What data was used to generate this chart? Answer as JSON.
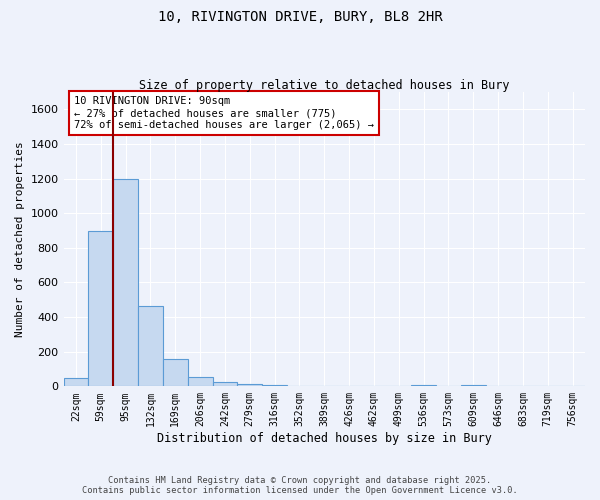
{
  "title1": "10, RIVINGTON DRIVE, BURY, BL8 2HR",
  "title2": "Size of property relative to detached houses in Bury",
  "xlabel": "Distribution of detached houses by size in Bury",
  "ylabel": "Number of detached properties",
  "bin_labels": [
    "22sqm",
    "59sqm",
    "95sqm",
    "132sqm",
    "169sqm",
    "206sqm",
    "242sqm",
    "279sqm",
    "316sqm",
    "352sqm",
    "389sqm",
    "426sqm",
    "462sqm",
    "499sqm",
    "536sqm",
    "573sqm",
    "609sqm",
    "646sqm",
    "683sqm",
    "719sqm",
    "756sqm"
  ],
  "bar_values": [
    50,
    900,
    1200,
    465,
    155,
    55,
    25,
    12,
    5,
    2,
    1,
    0,
    0,
    0,
    10,
    0,
    10,
    0,
    0,
    0,
    0
  ],
  "bar_color": "#c6d9f0",
  "bar_edge_color": "#5b9bd5",
  "vline_x_index": 1.5,
  "vline_color": "#8b0000",
  "annotation_text": "10 RIVINGTON DRIVE: 90sqm\n← 27% of detached houses are smaller (775)\n72% of semi-detached houses are larger (2,065) →",
  "annotation_box_color": "#ffffff",
  "annotation_box_edge_color": "#cc0000",
  "ylim": [
    0,
    1700
  ],
  "yticks": [
    0,
    200,
    400,
    600,
    800,
    1000,
    1200,
    1400,
    1600
  ],
  "bg_color": "#eef2fb",
  "grid_color": "#ffffff",
  "footer1": "Contains HM Land Registry data © Crown copyright and database right 2025.",
  "footer2": "Contains public sector information licensed under the Open Government Licence v3.0."
}
